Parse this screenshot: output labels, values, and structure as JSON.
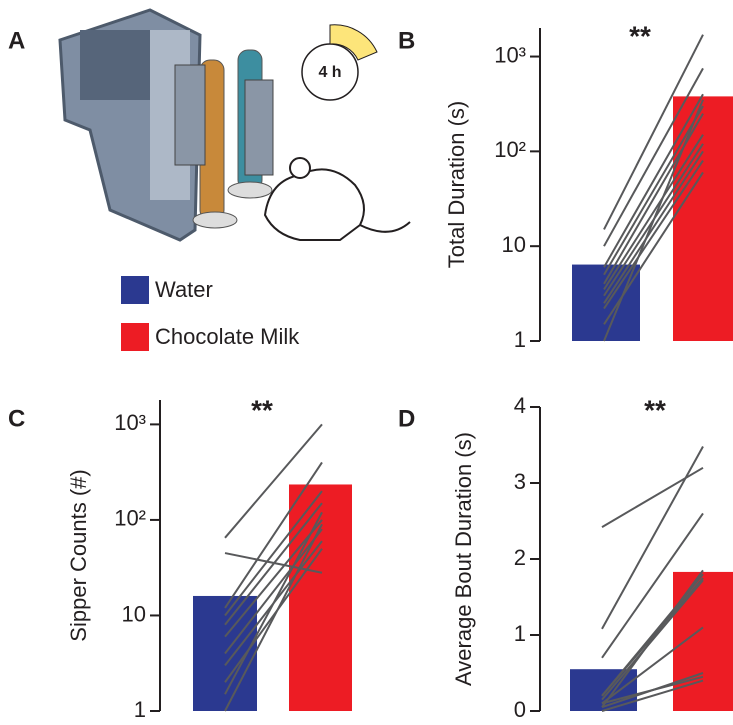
{
  "panel_a": {
    "label": "A",
    "timer": "4 h",
    "legend": [
      {
        "name": "Water",
        "color": "#2b3990"
      },
      {
        "name": "Chocolate Milk",
        "color": "#ed1c24"
      }
    ]
  },
  "chart_data": [
    {
      "type": "bar",
      "panel": "B",
      "ylabel": "Total Duration (s)",
      "log_scale": true,
      "significance": "**",
      "ylim": [
        1,
        2000
      ],
      "yticks": [
        1,
        10,
        {
          "value": 100,
          "label": "10²"
        },
        {
          "value": 1000,
          "label": "10³"
        }
      ],
      "values": [
        6.4,
        380
      ],
      "colors": [
        "#2b3990",
        "#ed1c24"
      ],
      "line_color": "#58595b",
      "paired": [
        [
          15,
          1700
        ],
        [
          10,
          750
        ],
        [
          6,
          400
        ],
        [
          5,
          300
        ],
        [
          4,
          250
        ],
        [
          3.5,
          150
        ],
        [
          3,
          120
        ],
        [
          2.5,
          100
        ],
        [
          2.2,
          80
        ],
        [
          1.5,
          60
        ],
        [
          1,
          350
        ]
      ]
    },
    {
      "type": "bar",
      "panel": "C",
      "ylabel": "Sipper Counts (#)",
      "log_scale": true,
      "significance": "**",
      "ylim": [
        1,
        1800
      ],
      "yticks": [
        1,
        10,
        {
          "value": 100,
          "label": "10²"
        },
        {
          "value": 1000,
          "label": "10³"
        }
      ],
      "values": [
        16,
        235
      ],
      "colors": [
        "#2b3990",
        "#ed1c24"
      ],
      "line_color": "#58595b",
      "paired": [
        [
          65,
          1000
        ],
        [
          45,
          28
        ],
        [
          12,
          400
        ],
        [
          10,
          200
        ],
        [
          8,
          150
        ],
        [
          6,
          100
        ],
        [
          4,
          80
        ],
        [
          3,
          60
        ],
        [
          2,
          50
        ],
        [
          1.5,
          120
        ],
        [
          1,
          90
        ]
      ]
    },
    {
      "type": "bar",
      "panel": "D",
      "ylabel": "Average Bout Duration (s)",
      "log_scale": false,
      "significance": "**",
      "ylim": [
        0,
        4
      ],
      "yticks": [
        0,
        1,
        2,
        3,
        4
      ],
      "values": [
        0.55,
        1.83
      ],
      "colors": [
        "#2b3990",
        "#ed1c24"
      ],
      "line_color": "#58595b",
      "paired": [
        [
          2.42,
          3.2
        ],
        [
          1.08,
          3.48
        ],
        [
          0.7,
          2.6
        ],
        [
          0.2,
          1.8
        ],
        [
          0.15,
          1.72
        ],
        [
          0.1,
          1.1
        ],
        [
          0.05,
          0.5
        ],
        [
          0.1,
          0.45
        ],
        [
          0.05,
          1.85
        ],
        [
          0.2,
          1.75
        ],
        [
          0,
          0.4
        ]
      ]
    }
  ]
}
